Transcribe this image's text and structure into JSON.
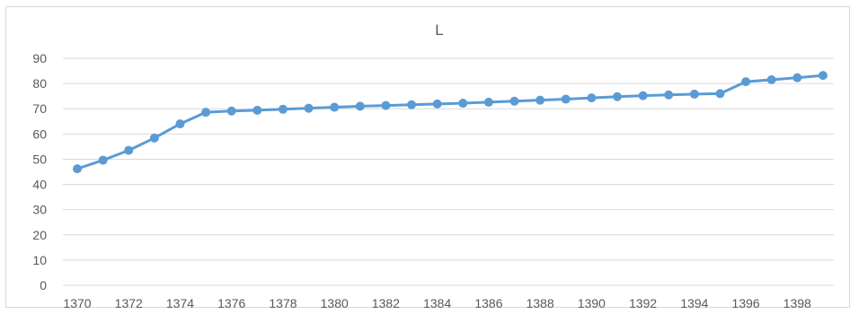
{
  "chart_data": {
    "type": "line",
    "title": "L",
    "xlabel": "",
    "ylabel": "",
    "x": [
      1370,
      1371,
      1372,
      1373,
      1374,
      1375,
      1376,
      1377,
      1378,
      1379,
      1380,
      1381,
      1382,
      1383,
      1384,
      1385,
      1386,
      1387,
      1388,
      1389,
      1390,
      1391,
      1392,
      1393,
      1394,
      1395,
      1396,
      1397,
      1398,
      1399
    ],
    "x_tick_labels": [
      "1370",
      "1372",
      "1374",
      "1376",
      "1378",
      "1380",
      "1382",
      "1384",
      "1386",
      "1388",
      "1390",
      "1392",
      "1394",
      "1396",
      "1398"
    ],
    "y_ticks": [
      "0",
      "10",
      "20",
      "30",
      "40",
      "50",
      "60",
      "70",
      "80",
      "90"
    ],
    "ylim": [
      0,
      90
    ],
    "grid": true,
    "legend": "none",
    "series": [
      {
        "color": "#5b9bd5",
        "values": [
          46.2,
          49.6,
          53.5,
          58.4,
          64.0,
          68.6,
          69.1,
          69.4,
          69.8,
          70.2,
          70.6,
          71.0,
          71.3,
          71.6,
          71.9,
          72.2,
          72.6,
          73.0,
          73.4,
          73.8,
          74.3,
          74.8,
          75.2,
          75.5,
          75.8,
          76.0,
          80.7,
          81.5,
          82.3,
          83.2
        ]
      }
    ]
  }
}
